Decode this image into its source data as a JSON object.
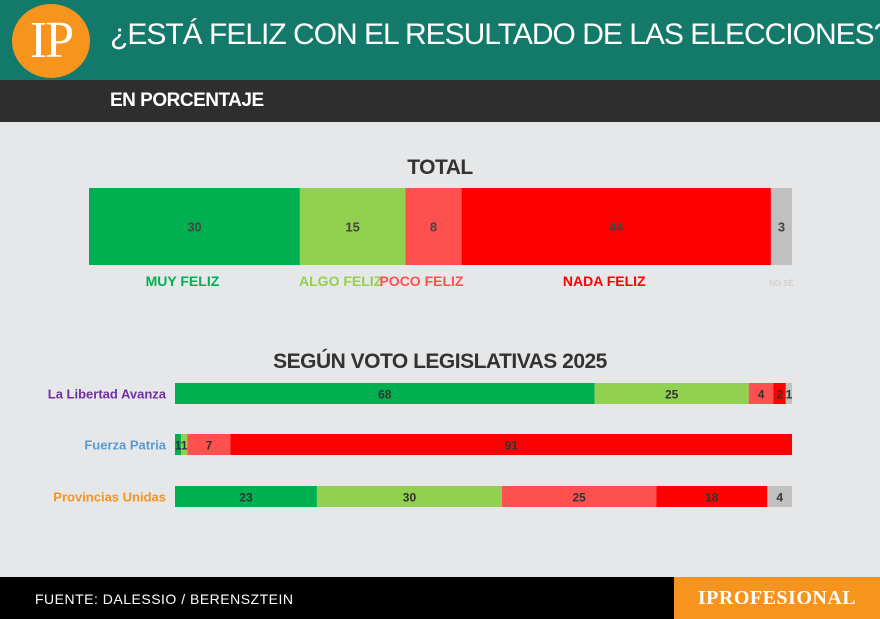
{
  "header": {
    "logo": "IP",
    "title": "¿ESTÁ FELIZ CON EL RESULTADO DE LAS ELECCIONES?",
    "subtitle": "EN PORCENTAJE"
  },
  "footer": {
    "source": "FUENTE: DALESSIO / BERENSZTEIN",
    "brand": "IPROFESIONAL"
  },
  "colors": {
    "muy_feliz": "#00b050",
    "algo_feliz": "#92d050",
    "poco_feliz": "#ff5050",
    "nada_feliz": "#ff0000",
    "no_se": "#c0c0c0"
  },
  "chart_data": [
    {
      "type": "bar",
      "orientation": "horizontal",
      "stacked": true,
      "title": "TOTAL",
      "categories": [
        "MUY FELIZ",
        "ALGO FELIZ",
        "POCO FELIZ",
        "NADA FELIZ",
        "NO SÉ"
      ],
      "values": [
        30,
        15,
        8,
        44,
        3
      ],
      "colors": [
        "#00b050",
        "#92d050",
        "#ff5050",
        "#ff0000",
        "#c0c0c0"
      ]
    },
    {
      "type": "bar",
      "orientation": "horizontal",
      "stacked": true,
      "title": "SEGÚN VOTO LEGISLATIVAS 2025",
      "categories": [
        "La Libertad Avanza",
        "Fuerza Patria",
        "Provincias Unidas"
      ],
      "category_colors": [
        "#7030a0",
        "#5b9bd5",
        "#f7941d"
      ],
      "series": [
        {
          "values": [
            68,
            1,
            23
          ],
          "color": "#00b050"
        },
        {
          "values": [
            25,
            1,
            30
          ],
          "color": "#92d050"
        },
        {
          "values": [
            4,
            7,
            25
          ],
          "color": "#ff5050"
        },
        {
          "values": [
            2,
            91,
            18
          ],
          "color": "#ff0000"
        },
        {
          "values": [
            1,
            0,
            4
          ],
          "color": "#c0c0c0"
        }
      ]
    }
  ]
}
